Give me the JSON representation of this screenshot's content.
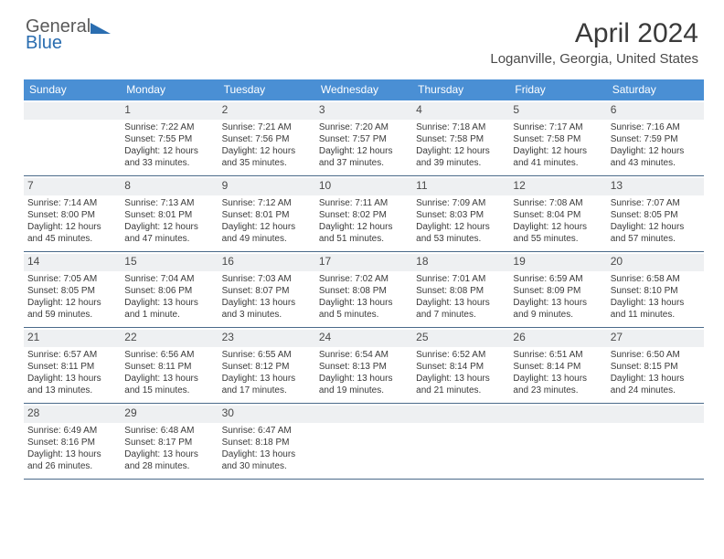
{
  "logo": {
    "general": "General",
    "blue": "Blue"
  },
  "month_year": "April 2024",
  "location": "Loganville, Georgia, United States",
  "header_bg": "#4a8fd4",
  "dow": [
    "Sunday",
    "Monday",
    "Tuesday",
    "Wednesday",
    "Thursday",
    "Friday",
    "Saturday"
  ],
  "weeks": [
    [
      {
        "n": "",
        "sr": "",
        "ss": "",
        "d1": "",
        "d2": ""
      },
      {
        "n": "1",
        "sr": "Sunrise: 7:22 AM",
        "ss": "Sunset: 7:55 PM",
        "d1": "Daylight: 12 hours",
        "d2": "and 33 minutes."
      },
      {
        "n": "2",
        "sr": "Sunrise: 7:21 AM",
        "ss": "Sunset: 7:56 PM",
        "d1": "Daylight: 12 hours",
        "d2": "and 35 minutes."
      },
      {
        "n": "3",
        "sr": "Sunrise: 7:20 AM",
        "ss": "Sunset: 7:57 PM",
        "d1": "Daylight: 12 hours",
        "d2": "and 37 minutes."
      },
      {
        "n": "4",
        "sr": "Sunrise: 7:18 AM",
        "ss": "Sunset: 7:58 PM",
        "d1": "Daylight: 12 hours",
        "d2": "and 39 minutes."
      },
      {
        "n": "5",
        "sr": "Sunrise: 7:17 AM",
        "ss": "Sunset: 7:58 PM",
        "d1": "Daylight: 12 hours",
        "d2": "and 41 minutes."
      },
      {
        "n": "6",
        "sr": "Sunrise: 7:16 AM",
        "ss": "Sunset: 7:59 PM",
        "d1": "Daylight: 12 hours",
        "d2": "and 43 minutes."
      }
    ],
    [
      {
        "n": "7",
        "sr": "Sunrise: 7:14 AM",
        "ss": "Sunset: 8:00 PM",
        "d1": "Daylight: 12 hours",
        "d2": "and 45 minutes."
      },
      {
        "n": "8",
        "sr": "Sunrise: 7:13 AM",
        "ss": "Sunset: 8:01 PM",
        "d1": "Daylight: 12 hours",
        "d2": "and 47 minutes."
      },
      {
        "n": "9",
        "sr": "Sunrise: 7:12 AM",
        "ss": "Sunset: 8:01 PM",
        "d1": "Daylight: 12 hours",
        "d2": "and 49 minutes."
      },
      {
        "n": "10",
        "sr": "Sunrise: 7:11 AM",
        "ss": "Sunset: 8:02 PM",
        "d1": "Daylight: 12 hours",
        "d2": "and 51 minutes."
      },
      {
        "n": "11",
        "sr": "Sunrise: 7:09 AM",
        "ss": "Sunset: 8:03 PM",
        "d1": "Daylight: 12 hours",
        "d2": "and 53 minutes."
      },
      {
        "n": "12",
        "sr": "Sunrise: 7:08 AM",
        "ss": "Sunset: 8:04 PM",
        "d1": "Daylight: 12 hours",
        "d2": "and 55 minutes."
      },
      {
        "n": "13",
        "sr": "Sunrise: 7:07 AM",
        "ss": "Sunset: 8:05 PM",
        "d1": "Daylight: 12 hours",
        "d2": "and 57 minutes."
      }
    ],
    [
      {
        "n": "14",
        "sr": "Sunrise: 7:05 AM",
        "ss": "Sunset: 8:05 PM",
        "d1": "Daylight: 12 hours",
        "d2": "and 59 minutes."
      },
      {
        "n": "15",
        "sr": "Sunrise: 7:04 AM",
        "ss": "Sunset: 8:06 PM",
        "d1": "Daylight: 13 hours",
        "d2": "and 1 minute."
      },
      {
        "n": "16",
        "sr": "Sunrise: 7:03 AM",
        "ss": "Sunset: 8:07 PM",
        "d1": "Daylight: 13 hours",
        "d2": "and 3 minutes."
      },
      {
        "n": "17",
        "sr": "Sunrise: 7:02 AM",
        "ss": "Sunset: 8:08 PM",
        "d1": "Daylight: 13 hours",
        "d2": "and 5 minutes."
      },
      {
        "n": "18",
        "sr": "Sunrise: 7:01 AM",
        "ss": "Sunset: 8:08 PM",
        "d1": "Daylight: 13 hours",
        "d2": "and 7 minutes."
      },
      {
        "n": "19",
        "sr": "Sunrise: 6:59 AM",
        "ss": "Sunset: 8:09 PM",
        "d1": "Daylight: 13 hours",
        "d2": "and 9 minutes."
      },
      {
        "n": "20",
        "sr": "Sunrise: 6:58 AM",
        "ss": "Sunset: 8:10 PM",
        "d1": "Daylight: 13 hours",
        "d2": "and 11 minutes."
      }
    ],
    [
      {
        "n": "21",
        "sr": "Sunrise: 6:57 AM",
        "ss": "Sunset: 8:11 PM",
        "d1": "Daylight: 13 hours",
        "d2": "and 13 minutes."
      },
      {
        "n": "22",
        "sr": "Sunrise: 6:56 AM",
        "ss": "Sunset: 8:11 PM",
        "d1": "Daylight: 13 hours",
        "d2": "and 15 minutes."
      },
      {
        "n": "23",
        "sr": "Sunrise: 6:55 AM",
        "ss": "Sunset: 8:12 PM",
        "d1": "Daylight: 13 hours",
        "d2": "and 17 minutes."
      },
      {
        "n": "24",
        "sr": "Sunrise: 6:54 AM",
        "ss": "Sunset: 8:13 PM",
        "d1": "Daylight: 13 hours",
        "d2": "and 19 minutes."
      },
      {
        "n": "25",
        "sr": "Sunrise: 6:52 AM",
        "ss": "Sunset: 8:14 PM",
        "d1": "Daylight: 13 hours",
        "d2": "and 21 minutes."
      },
      {
        "n": "26",
        "sr": "Sunrise: 6:51 AM",
        "ss": "Sunset: 8:14 PM",
        "d1": "Daylight: 13 hours",
        "d2": "and 23 minutes."
      },
      {
        "n": "27",
        "sr": "Sunrise: 6:50 AM",
        "ss": "Sunset: 8:15 PM",
        "d1": "Daylight: 13 hours",
        "d2": "and 24 minutes."
      }
    ],
    [
      {
        "n": "28",
        "sr": "Sunrise: 6:49 AM",
        "ss": "Sunset: 8:16 PM",
        "d1": "Daylight: 13 hours",
        "d2": "and 26 minutes."
      },
      {
        "n": "29",
        "sr": "Sunrise: 6:48 AM",
        "ss": "Sunset: 8:17 PM",
        "d1": "Daylight: 13 hours",
        "d2": "and 28 minutes."
      },
      {
        "n": "30",
        "sr": "Sunrise: 6:47 AM",
        "ss": "Sunset: 8:18 PM",
        "d1": "Daylight: 13 hours",
        "d2": "and 30 minutes."
      },
      {
        "n": "",
        "sr": "",
        "ss": "",
        "d1": "",
        "d2": ""
      },
      {
        "n": "",
        "sr": "",
        "ss": "",
        "d1": "",
        "d2": ""
      },
      {
        "n": "",
        "sr": "",
        "ss": "",
        "d1": "",
        "d2": ""
      },
      {
        "n": "",
        "sr": "",
        "ss": "",
        "d1": "",
        "d2": ""
      }
    ]
  ]
}
